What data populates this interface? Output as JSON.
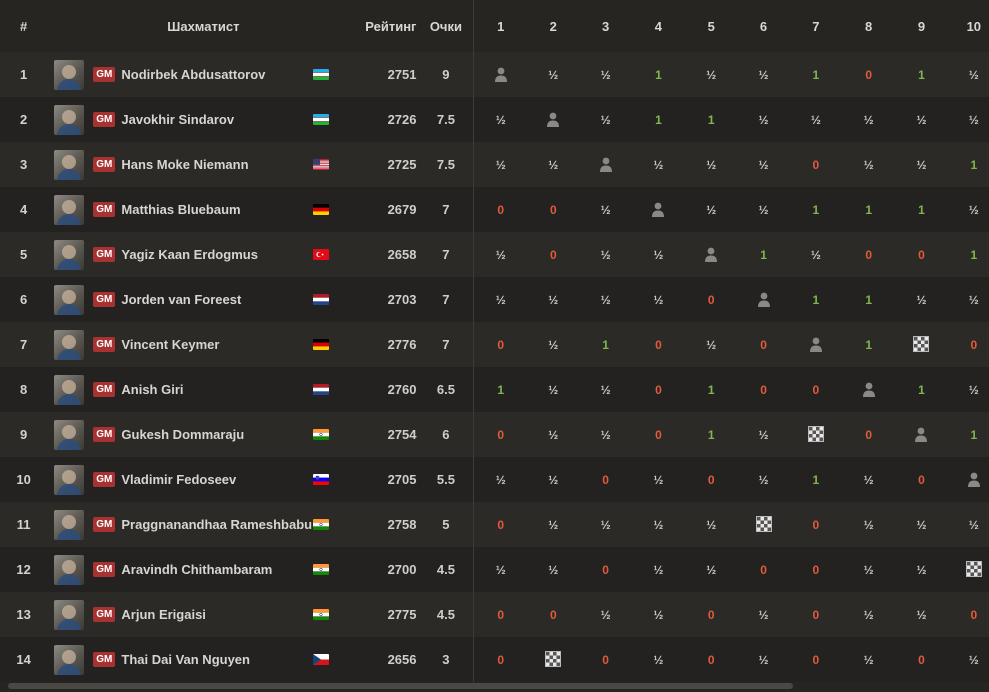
{
  "headers": {
    "rank": "#",
    "player": "Шахматист",
    "rating": "Рейтинг",
    "score": "Очки",
    "rounds": [
      "1",
      "2",
      "3",
      "4",
      "5",
      "6",
      "7",
      "8",
      "9",
      "10"
    ]
  },
  "title_badge": "GM",
  "icons": {
    "self": "player-silhouette-icon",
    "bye": "checkered-bye-icon"
  },
  "colors": {
    "win": "#81b64c",
    "loss": "#e15b3b",
    "draw": "#c9c8c6",
    "gm_badge": "#a83232"
  },
  "players": [
    {
      "rank": "1",
      "name": "Nodirbek Abdusattorov",
      "flag": "uz",
      "rating": "2751",
      "score": "9",
      "results": [
        "self",
        "½",
        "½",
        "1",
        "½",
        "½",
        "1",
        "0",
        "1",
        "½"
      ]
    },
    {
      "rank": "2",
      "name": "Javokhir Sindarov",
      "flag": "uz",
      "rating": "2726",
      "score": "7.5",
      "results": [
        "½",
        "self",
        "½",
        "1",
        "1",
        "½",
        "½",
        "½",
        "½",
        "½"
      ]
    },
    {
      "rank": "3",
      "name": "Hans Moke Niemann",
      "flag": "us",
      "rating": "2725",
      "score": "7.5",
      "results": [
        "½",
        "½",
        "self",
        "½",
        "½",
        "½",
        "0",
        "½",
        "½",
        "1"
      ]
    },
    {
      "rank": "4",
      "name": "Matthias Bluebaum",
      "flag": "de",
      "rating": "2679",
      "score": "7",
      "results": [
        "0",
        "0",
        "½",
        "self",
        "½",
        "½",
        "1",
        "1",
        "1",
        "½"
      ]
    },
    {
      "rank": "5",
      "name": "Yagiz Kaan Erdogmus",
      "flag": "tr",
      "rating": "2658",
      "score": "7",
      "results": [
        "½",
        "0",
        "½",
        "½",
        "self",
        "1",
        "½",
        "0",
        "0",
        "1"
      ]
    },
    {
      "rank": "6",
      "name": "Jorden van Foreest",
      "flag": "nl",
      "rating": "2703",
      "score": "7",
      "results": [
        "½",
        "½",
        "½",
        "½",
        "0",
        "self",
        "1",
        "1",
        "½",
        "½"
      ]
    },
    {
      "rank": "7",
      "name": "Vincent Keymer",
      "flag": "de",
      "rating": "2776",
      "score": "7",
      "results": [
        "0",
        "½",
        "1",
        "0",
        "½",
        "0",
        "self",
        "1",
        "bye",
        "0"
      ]
    },
    {
      "rank": "8",
      "name": "Anish Giri",
      "flag": "nl",
      "rating": "2760",
      "score": "6.5",
      "results": [
        "1",
        "½",
        "½",
        "0",
        "1",
        "0",
        "0",
        "self",
        "1",
        "½"
      ]
    },
    {
      "rank": "9",
      "name": "Gukesh Dommaraju",
      "flag": "in",
      "rating": "2754",
      "score": "6",
      "results": [
        "0",
        "½",
        "½",
        "0",
        "1",
        "½",
        "bye",
        "0",
        "self",
        "1"
      ]
    },
    {
      "rank": "10",
      "name": "Vladimir Fedoseev",
      "flag": "si",
      "rating": "2705",
      "score": "5.5",
      "results": [
        "½",
        "½",
        "0",
        "½",
        "0",
        "½",
        "1",
        "½",
        "0",
        "self"
      ]
    },
    {
      "rank": "11",
      "name": "Praggnanandhaa Rameshbabu",
      "flag": "in",
      "rating": "2758",
      "score": "5",
      "results": [
        "0",
        "½",
        "½",
        "½",
        "½",
        "bye",
        "0",
        "½",
        "½",
        "½"
      ]
    },
    {
      "rank": "12",
      "name": "Aravindh Chithambaram",
      "flag": "in",
      "rating": "2700",
      "score": "4.5",
      "results": [
        "½",
        "½",
        "0",
        "½",
        "½",
        "0",
        "0",
        "½",
        "½",
        "bye"
      ]
    },
    {
      "rank": "13",
      "name": "Arjun Erigaisi",
      "flag": "in",
      "rating": "2775",
      "score": "4.5",
      "results": [
        "0",
        "0",
        "½",
        "½",
        "0",
        "½",
        "0",
        "½",
        "½",
        "0"
      ]
    },
    {
      "rank": "14",
      "name": "Thai Dai Van Nguyen",
      "flag": "cz",
      "rating": "2656",
      "score": "3",
      "results": [
        "0",
        "bye",
        "0",
        "½",
        "0",
        "½",
        "0",
        "½",
        "0",
        "½"
      ]
    }
  ]
}
